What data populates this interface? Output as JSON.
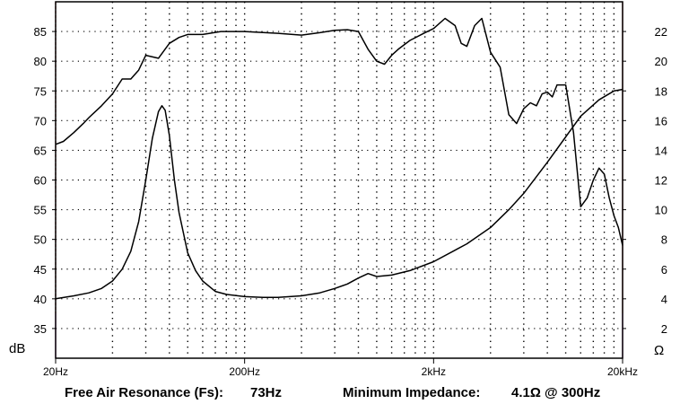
{
  "chart_data": {
    "type": "line",
    "x_scale": "log",
    "xlim": [
      20,
      20000
    ],
    "x_ticks": [
      {
        "value": 20,
        "label": "20Hz"
      },
      {
        "value": 200,
        "label": "200Hz"
      },
      {
        "value": 2000,
        "label": "2kHz"
      },
      {
        "value": 20000,
        "label": "20kHz"
      }
    ],
    "left_axis": {
      "unit": "dB",
      "ylim": [
        30,
        90
      ],
      "ticks": [
        35,
        40,
        45,
        50,
        55,
        60,
        65,
        70,
        75,
        80,
        85
      ]
    },
    "right_axis": {
      "unit": "Ω",
      "ylim": [
        0,
        24
      ],
      "ticks": [
        2,
        4,
        6,
        8,
        10,
        12,
        14,
        16,
        18,
        20,
        22
      ]
    },
    "grid": true,
    "series": [
      {
        "axis": "left",
        "x": [
          20,
          22,
          25,
          28,
          30,
          35,
          40,
          45,
          50,
          55,
          60,
          70,
          80,
          90,
          100,
          120,
          150,
          200,
          300,
          400,
          500,
          600,
          700,
          800,
          900,
          1000,
          1100,
          1200,
          1300,
          1500,
          1800,
          2000,
          2300,
          2600,
          2800,
          3000,
          3300,
          3600,
          4000,
          4500,
          5000,
          5500,
          6000,
          6500,
          7000,
          7500,
          8000,
          8500,
          9000,
          10000,
          11000,
          12000,
          13000,
          14000,
          15000,
          16000,
          17000,
          18000,
          19000,
          20000
        ],
        "y": [
          66,
          66.5,
          68,
          69.5,
          70.5,
          72.5,
          74.5,
          77,
          77,
          78.5,
          81,
          80.5,
          83,
          84,
          84.5,
          84.5,
          85,
          85,
          84.7,
          84.4,
          84.8,
          85.2,
          85.3,
          85,
          82,
          80,
          79.5,
          81,
          82,
          83.5,
          84.8,
          85.5,
          87.2,
          86,
          83,
          82.5,
          86,
          87.2,
          81.5,
          79,
          71,
          69.5,
          72,
          73,
          72.5,
          74.5,
          74.8,
          74,
          76,
          76,
          68,
          55.5,
          57,
          60,
          62,
          61,
          57,
          54,
          52,
          49
        ]
      },
      {
        "axis": "right",
        "x": [
          20,
          25,
          30,
          35,
          40,
          45,
          50,
          55,
          60,
          65,
          70,
          73,
          76,
          80,
          85,
          90,
          100,
          110,
          120,
          140,
          160,
          200,
          250,
          300,
          400,
          500,
          600,
          700,
          800,
          900,
          1000,
          1200,
          1500,
          2000,
          3000,
          4000,
          5000,
          6000,
          8000,
          10000,
          12000,
          15000,
          18000,
          20000
        ],
        "y": [
          4,
          4.2,
          4.4,
          4.7,
          5.2,
          6.0,
          7.2,
          9.2,
          12.0,
          14.8,
          16.6,
          17.0,
          16.7,
          15.0,
          12.0,
          9.8,
          7.1,
          5.9,
          5.2,
          4.5,
          4.3,
          4.15,
          4.1,
          4.1,
          4.2,
          4.4,
          4.7,
          5.0,
          5.4,
          5.7,
          5.5,
          5.6,
          5.9,
          6.5,
          7.7,
          8.8,
          10.0,
          11.1,
          13.2,
          14.9,
          16.3,
          17.4,
          18.0,
          18.1
        ]
      }
    ],
    "annotations": [
      {
        "label": "Free Air Resonance (Fs):",
        "value": "73Hz"
      },
      {
        "label": "Minimum Impedance:",
        "value": "4.1Ω @ 300Hz"
      }
    ]
  },
  "colors": {
    "axis": "#000000",
    "grid": "#000000",
    "bound_line": "#c00000",
    "bound_foot": "#c000c0",
    "curve": "#000000"
  }
}
